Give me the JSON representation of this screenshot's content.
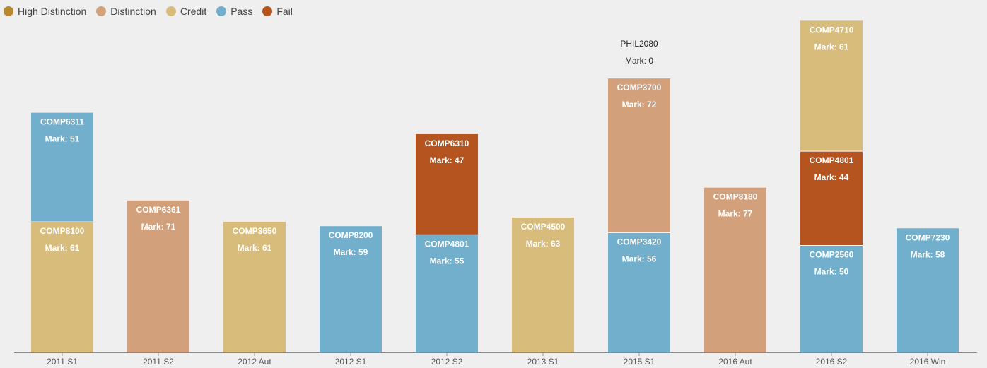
{
  "legend": [
    {
      "name": "High Distinction",
      "color": "#b8862e"
    },
    {
      "name": "Distinction",
      "color": "#d3a07c"
    },
    {
      "name": "Credit",
      "color": "#d8bc7c"
    },
    {
      "name": "Pass",
      "color": "#72afcc"
    },
    {
      "name": "Fail",
      "color": "#b5541e"
    }
  ],
  "chart_data": {
    "type": "bar",
    "stacked": true,
    "grid": false,
    "legend_position": "top-left",
    "categories": [
      "2011 S1",
      "2011 S2",
      "2012 Aut",
      "2012 S1",
      "2012 S2",
      "2013 S1",
      "2015 S1",
      "2016 Aut",
      "2016 S2",
      "2016 Win"
    ],
    "ylim": [
      0,
      140
    ],
    "stacks": [
      [
        {
          "course": "COMP8100",
          "mark_label": "Mark: 61",
          "mark": 61,
          "grade": "Credit"
        },
        {
          "course": "COMP6311",
          "mark_label": "Mark: 51",
          "mark": 51,
          "grade": "Pass"
        }
      ],
      [
        {
          "course": "COMP6361",
          "mark_label": "Mark: 71",
          "mark": 71,
          "grade": "Distinction"
        }
      ],
      [
        {
          "course": "COMP3650",
          "mark_label": "Mark: 61",
          "mark": 61,
          "grade": "Credit"
        }
      ],
      [
        {
          "course": "COMP8200",
          "mark_label": "Mark: 59",
          "mark": 59,
          "grade": "Pass"
        }
      ],
      [
        {
          "course": "COMP4801",
          "mark_label": "Mark: 55",
          "mark": 55,
          "grade": "Pass"
        },
        {
          "course": "COMP6310",
          "mark_label": "Mark: 47",
          "mark": 47,
          "grade": "Fail"
        }
      ],
      [
        {
          "course": "COMP4500",
          "mark_label": "Mark: 63",
          "mark": 63,
          "grade": "Credit"
        }
      ],
      [
        {
          "course": "COMP3420",
          "mark_label": "Mark: 56",
          "mark": 56,
          "grade": "Pass"
        },
        {
          "course": "COMP3700",
          "mark_label": "Mark: 72",
          "mark": 72,
          "grade": "Distinction"
        },
        {
          "course": "PHIL2080",
          "mark_label": "Mark: 0",
          "mark": 0,
          "grade": "Fail"
        }
      ],
      [
        {
          "course": "COMP8180",
          "mark_label": "Mark: 77",
          "mark": 77,
          "grade": "Distinction"
        }
      ],
      [
        {
          "course": "COMP2560",
          "mark_label": "Mark: 50",
          "mark": 50,
          "grade": "Pass"
        },
        {
          "course": "COMP4801",
          "mark_label": "Mark: 44",
          "mark": 44,
          "grade": "Fail"
        },
        {
          "course": "COMP4710",
          "mark_label": "Mark: 61",
          "mark": 61,
          "grade": "Credit"
        }
      ],
      [
        {
          "course": "COMP7230",
          "mark_label": "Mark: 58",
          "mark": 58,
          "grade": "Pass"
        }
      ]
    ]
  }
}
